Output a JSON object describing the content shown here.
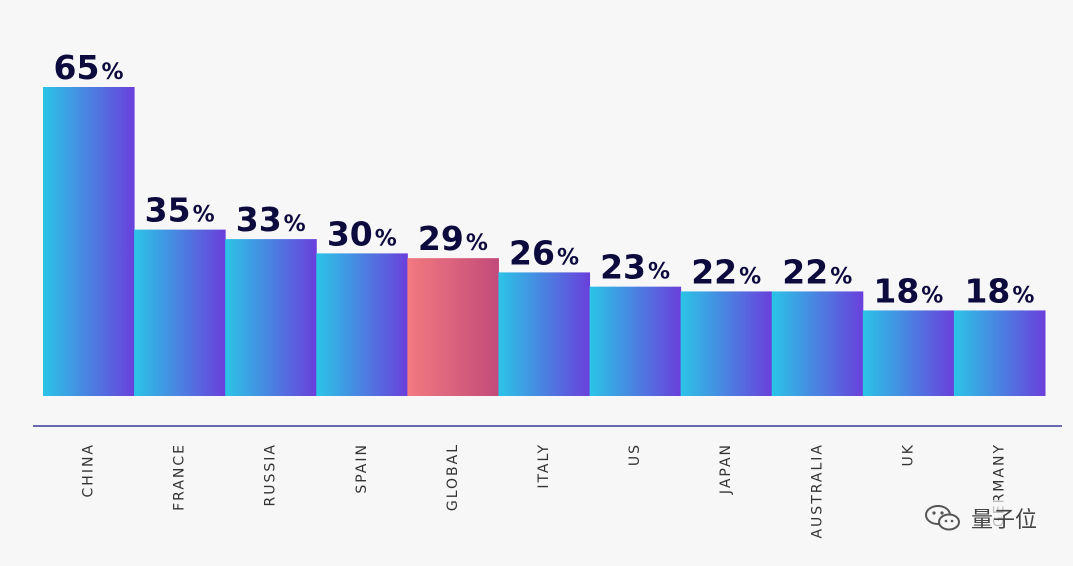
{
  "chart_data": {
    "type": "bar",
    "categories": [
      "CHINA",
      "FRANCE",
      "RUSSIA",
      "SPAIN",
      "GLOBAL",
      "ITALY",
      "US",
      "JAPAN",
      "AUSTRALIA",
      "UK",
      "GERMANY"
    ],
    "values": [
      65,
      35,
      33,
      30,
      29,
      26,
      23,
      22,
      22,
      18,
      18
    ],
    "value_suffix": "%",
    "highlight_category": "GLOBAL",
    "ylim": [
      0,
      65
    ],
    "grid": false,
    "colors": {
      "bar_start": "#2bc4e6",
      "bar_end": "#6a3fdc",
      "highlight_start": "#f27a80",
      "highlight_end": "#c24a7a",
      "baseline": "#3a3a9a",
      "value_text": "#0d0a3e"
    }
  },
  "watermark": {
    "text": "量子位",
    "icon": "wechat-icon"
  }
}
